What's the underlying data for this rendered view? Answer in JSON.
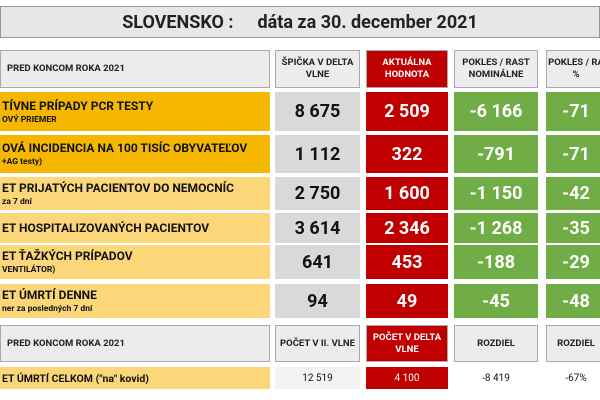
{
  "title": {
    "country": "SLOVENSKO :",
    "date": "dáta za 30. december 2021"
  },
  "table1": {
    "header": [
      "PRED KONCOM ROKA 2021",
      "ŠPIČKA V DELTA VLNE",
      "AKTUÁLNA HODNOTA",
      "POKLES / RAST NOMINÁLNE",
      "POKLES / RA %"
    ],
    "rows": [
      {
        "label": "TÍVNE PRÍPADY PCR TESTY",
        "sublabel": "OVÝ PRIEMER",
        "cells": [
          "8 675",
          "2 509",
          "-6 166",
          "-71"
        ]
      },
      {
        "label": "OVÁ INCIDENCIA NA 100 TISÍC OBYVATEĽOV",
        "sublabel": "+AG testy)",
        "cells": [
          "1 112",
          "322",
          "-791",
          "-71"
        ]
      },
      {
        "label": "ET PRIJATÝCH PACIENTOV DO NEMOCNÍC",
        "sublabel": "za 7 dní",
        "cells": [
          "2 750",
          "1 600",
          "-1 150",
          "-42"
        ]
      },
      {
        "label": "ET HOSPITALIZOVANÝCH PACIENTOV",
        "cells": [
          "3 614",
          "2 346",
          "-1 268",
          "-35"
        ]
      },
      {
        "label": "ET ŤAŽKÝCH PRÍPADOV",
        "sublabel": "VENTILÁTOR)",
        "cells": [
          "641",
          "453",
          "-188",
          "-29"
        ]
      },
      {
        "label": "ET ÚMRTÍ DENNE",
        "sublabel": "ner za posledných 7 dní",
        "cells": [
          "94",
          "49",
          "-45",
          "-48"
        ]
      }
    ]
  },
  "table2": {
    "header": [
      "PRED KONCOM ROKA 2021",
      "POČET V II. VLNE",
      "POČET V DELTA VLNE",
      "ROZDIEL",
      "ROZDIEL"
    ],
    "rows": [
      {
        "label": "ET ÚMRTÍ CELKOM  (\"na\" kovid)",
        "cells": [
          "12 519",
          "4 100",
          "-8 419",
          "-67%"
        ]
      }
    ]
  }
}
